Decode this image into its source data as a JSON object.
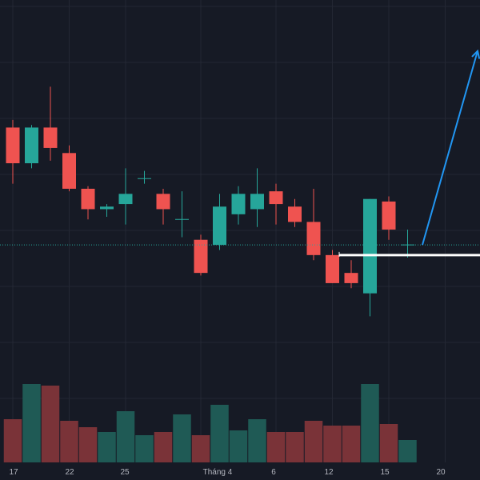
{
  "chart_data": {
    "type": "candlestick",
    "title": "",
    "xlabel": "",
    "ylabel": "",
    "grid": true,
    "colors": {
      "background": "#161a25",
      "grid": "#232733",
      "up": "#26a69a",
      "down": "#ef5350",
      "volume_up": "#1f5a55",
      "volume_down": "#7a3338",
      "current_price_line": "#26a69a",
      "level_line": "#ffffff",
      "arrow": "#2196f3",
      "axis_text": "#b2b5be"
    },
    "x_tick_labels": [
      "17",
      "22",
      "25",
      "Tháng 4",
      "6",
      "12",
      "15",
      "20"
    ],
    "candles": [
      {
        "open": 97.0,
        "high": 98.5,
        "low": 86.0,
        "close": 90.0
      },
      {
        "open": 90.0,
        "high": 97.5,
        "low": 89.0,
        "close": 97.0
      },
      {
        "open": 97.0,
        "high": 105.0,
        "low": 90.5,
        "close": 93.0
      },
      {
        "open": 92.0,
        "high": 93.5,
        "low": 84.5,
        "close": 85.0
      },
      {
        "open": 85.0,
        "high": 85.5,
        "low": 79.0,
        "close": 81.0
      },
      {
        "open": 81.0,
        "high": 82.0,
        "low": 79.5,
        "close": 81.5
      },
      {
        "open": 82.0,
        "high": 89.0,
        "low": 78.0,
        "close": 84.0
      },
      {
        "open": 87.0,
        "high": 88.5,
        "low": 86.0,
        "close": 87.0
      },
      {
        "open": 84.0,
        "high": 85.0,
        "low": 78.0,
        "close": 81.0
      },
      {
        "open": 79.0,
        "high": 84.5,
        "low": 75.5,
        "close": 79.0
      },
      {
        "open": 75.0,
        "high": 76.0,
        "low": 68.0,
        "close": 68.5
      },
      {
        "open": 74.0,
        "high": 84.0,
        "low": 73.0,
        "close": 81.5
      },
      {
        "open": 80.0,
        "high": 85.5,
        "low": 78.0,
        "close": 84.0
      },
      {
        "open": 81.0,
        "high": 89.0,
        "low": 77.5,
        "close": 84.0
      },
      {
        "open": 84.5,
        "high": 86.0,
        "low": 78.0,
        "close": 82.0
      },
      {
        "open": 81.5,
        "high": 83.0,
        "low": 77.5,
        "close": 78.5
      },
      {
        "open": 78.5,
        "high": 85.0,
        "low": 71.0,
        "close": 72.0
      },
      {
        "open": 72.0,
        "high": 73.0,
        "low": 66.5,
        "close": 66.5
      },
      {
        "open": 68.5,
        "high": 71.0,
        "low": 65.5,
        "close": 66.5
      },
      {
        "open": 64.5,
        "high": 83.0,
        "low": 60.0,
        "close": 83.0
      },
      {
        "open": 82.5,
        "high": 83.5,
        "low": 75.0,
        "close": 77.0
      },
      {
        "open": 74.0,
        "high": 77.0,
        "low": 71.5,
        "close": 74.0
      }
    ],
    "volume": [
      27,
      49,
      48,
      26,
      22,
      19,
      32,
      17,
      19,
      30,
      17,
      36,
      20,
      27,
      19,
      19,
      26,
      23,
      23,
      49,
      24,
      14
    ],
    "current_price": 74.0,
    "horizontal_level": 72.0,
    "projection_arrow": {
      "from_value": 74.0,
      "to_value": 112.0
    }
  }
}
